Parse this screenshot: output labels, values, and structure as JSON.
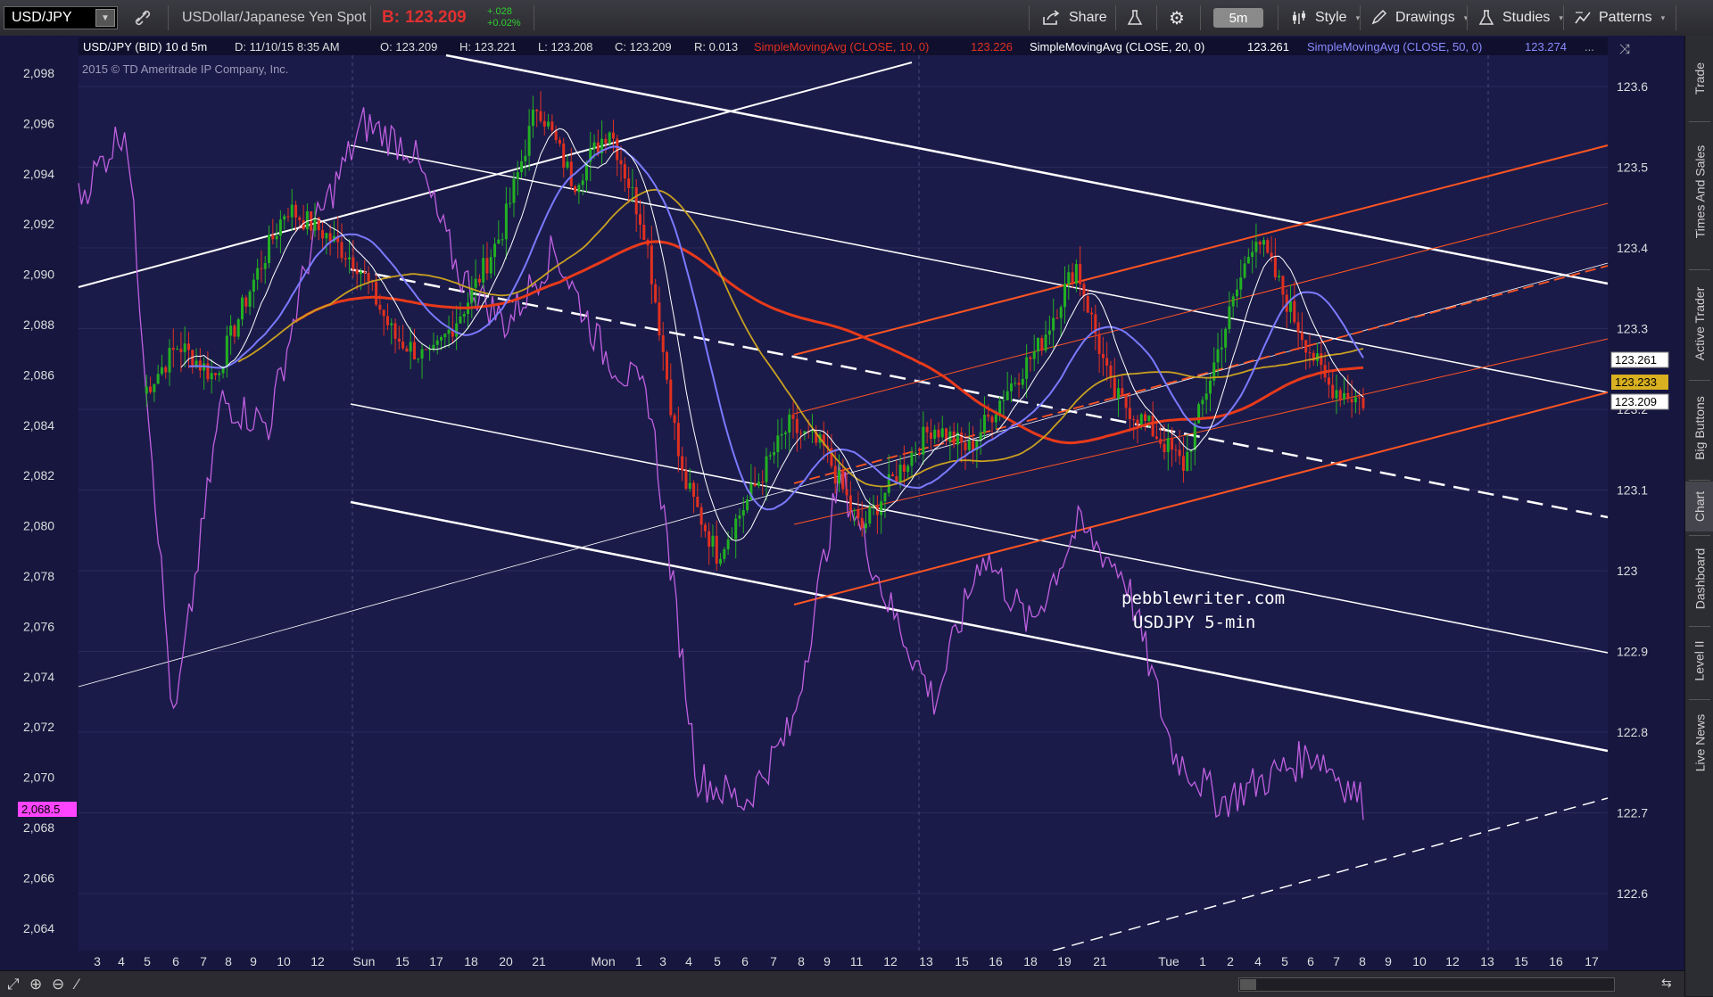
{
  "toolbar": {
    "symbol": "USD/JPY",
    "description": "USDollar/Japanese Yen Spot",
    "bid_label": "B:",
    "bid_value": "123.209",
    "change_abs": "+.028",
    "change_pct": "+0.02%",
    "share_label": "Share",
    "timeframe_label": "5m",
    "style_label": "Style",
    "drawings_label": "Drawings",
    "studies_label": "Studies",
    "patterns_label": "Patterns"
  },
  "header": {
    "symbol_info": "USD/JPY (BID) 10 d 5m",
    "d": "D: 11/10/15 8:35 AM",
    "o": "O: 123.209",
    "h": "H: 123.221",
    "l": "L: 123.208",
    "c": "C: 123.209",
    "r": "R: 0.013",
    "sma10": "SimpleMovingAvg (CLOSE, 10, 0)",
    "sma10_val": "123.226",
    "sma20": "SimpleMovingAvg (CLOSE, 20, 0)",
    "sma20_val": "123.261",
    "sma50": "SimpleMovingAvg (CLOSE, 50, 0)",
    "sma50_val": "123.274",
    "copyright": "2015 © TD Ameritrade IP Company, Inc."
  },
  "watermark": {
    "line1": "pebblewriter.com",
    "line2": "USDJPY 5-min"
  },
  "left_axis": [
    "2,098",
    "2,096",
    "2,094",
    "2,092",
    "2,090",
    "2,088",
    "2,086",
    "2,084",
    "2,082",
    "2,080",
    "2,078",
    "2,076",
    "2,074",
    "2,072",
    "2,070",
    "2,068",
    "2,066",
    "2,064"
  ],
  "left_marker": "2,068.5",
  "right_axis": [
    "123.6",
    "123.5",
    "123.4",
    "123.3",
    "123.2",
    "123.1",
    "123",
    "122.9",
    "122.8",
    "122.7",
    "122.6"
  ],
  "right_markers": {
    "white": "123.261",
    "gold": "123.233",
    "last": "123.209"
  },
  "x_axis": [
    "3",
    "4",
    "5",
    "6",
    "7",
    "8",
    "9",
    "10",
    "12",
    "Sun",
    "15",
    "17",
    "18",
    "20",
    "21",
    "Mon",
    "1",
    "3",
    "4",
    "5",
    "6",
    "7",
    "8",
    "9",
    "11",
    "12",
    "13",
    "15",
    "16",
    "18",
    "19",
    "21",
    "Tue",
    "1",
    "2",
    "4",
    "5",
    "6",
    "7",
    "8",
    "9",
    "10",
    "12",
    "13",
    "15",
    "16",
    "17"
  ],
  "sidebar": [
    "Trade",
    "Times And Sales",
    "Active Trader",
    "Big Buttons",
    "Chart",
    "Dashboard",
    "Level II",
    "Live News"
  ],
  "colors": {
    "background": "#16163f",
    "price_red": "#e03020",
    "price_green": "#22b022",
    "sma10": "#ffffff",
    "sma20": "#7a7aff",
    "sma50": "#c8a020",
    "sma200": "#e83a1a",
    "spx": "#c060e0",
    "channel_white": "#ffffff",
    "channel_orange": "#ff5522"
  },
  "chart_data": {
    "type": "line",
    "title": "USD/JPY (BID) 10 d 5m",
    "ylim_right": [
      122.52,
      123.66
    ],
    "ylim_left": [
      2062.8,
      2099.4
    ],
    "series": [
      {
        "name": "USD/JPY price",
        "axis": "right",
        "values": [
          123.22,
          123.28,
          123.24,
          123.35,
          123.45,
          123.42,
          123.38,
          123.29,
          123.26,
          123.33,
          123.42,
          123.58,
          123.48,
          123.55,
          123.42,
          123.12,
          123.02,
          123.1,
          123.18,
          123.15,
          123.05,
          123.12,
          123.18,
          123.15,
          123.22,
          123.28,
          123.38,
          123.22,
          123.18,
          123.13,
          123.28,
          123.42,
          123.32,
          123.23,
          123.21
        ]
      },
      {
        "name": "SimpleMovingAvg (CLOSE, 10, 0)",
        "axis": "right",
        "values": [
          123.226
        ]
      },
      {
        "name": "SimpleMovingAvg (CLOSE, 20, 0)",
        "axis": "right",
        "values": [
          123.261
        ]
      },
      {
        "name": "SimpleMovingAvg (CLOSE, 50, 0)",
        "axis": "right",
        "values": [
          123.274
        ]
      }
    ]
  }
}
